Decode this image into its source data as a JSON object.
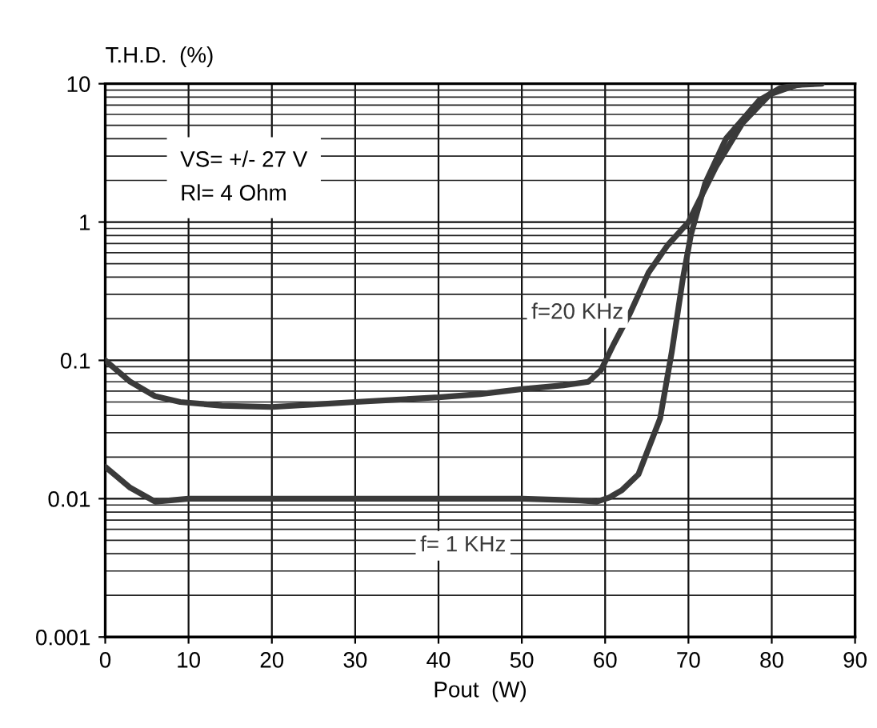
{
  "chart_data": {
    "type": "line",
    "xlabel": "Pout  (W)",
    "ylabel": "T.H.D.  (%)",
    "annotations": [
      "VS= +/- 27 V\nRl= 4 Ohm"
    ],
    "series": [
      {
        "name": "f=20 KHz",
        "color": "#3a3a3a",
        "x": [
          0,
          3,
          6,
          9,
          14,
          20,
          25,
          30,
          35,
          40,
          45,
          50,
          55,
          58,
          59.5,
          61,
          63,
          65.2,
          67.5,
          70,
          73.3,
          76.5,
          79.8,
          83,
          86
        ],
        "values": [
          0.1,
          0.07,
          0.055,
          0.05,
          0.047,
          0.046,
          0.048,
          0.05,
          0.052,
          0.054,
          0.057,
          0.062,
          0.066,
          0.07,
          0.085,
          0.13,
          0.22,
          0.43,
          0.68,
          1.0,
          2.5,
          5.2,
          8.4,
          9.8,
          10
        ]
      },
      {
        "name": "f= 1 KHz",
        "color": "#3a3a3a",
        "x": [
          0,
          3,
          6,
          10,
          20,
          30,
          40,
          50,
          57,
          59,
          60.5,
          62,
          64,
          66.6,
          68,
          69.3,
          70.3,
          72,
          74.5,
          78.5,
          81,
          84
        ],
        "values": [
          0.017,
          0.012,
          0.0095,
          0.01,
          0.01,
          0.01,
          0.01,
          0.01,
          0.0097,
          0.0095,
          0.0102,
          0.0115,
          0.015,
          0.038,
          0.115,
          0.38,
          0.81,
          1.9,
          4,
          7.6,
          9.3,
          10
        ]
      }
    ],
    "xlim": [
      0,
      90
    ],
    "xticks": [
      0,
      10,
      20,
      30,
      40,
      50,
      60,
      70,
      80,
      90
    ],
    "ylim": [
      0.001,
      10
    ],
    "yticks": [
      0.001,
      0.01,
      0.1,
      1,
      10
    ],
    "log": "y",
    "grid": true,
    "legend": false,
    "marker": "none",
    "line_style": "solid"
  }
}
